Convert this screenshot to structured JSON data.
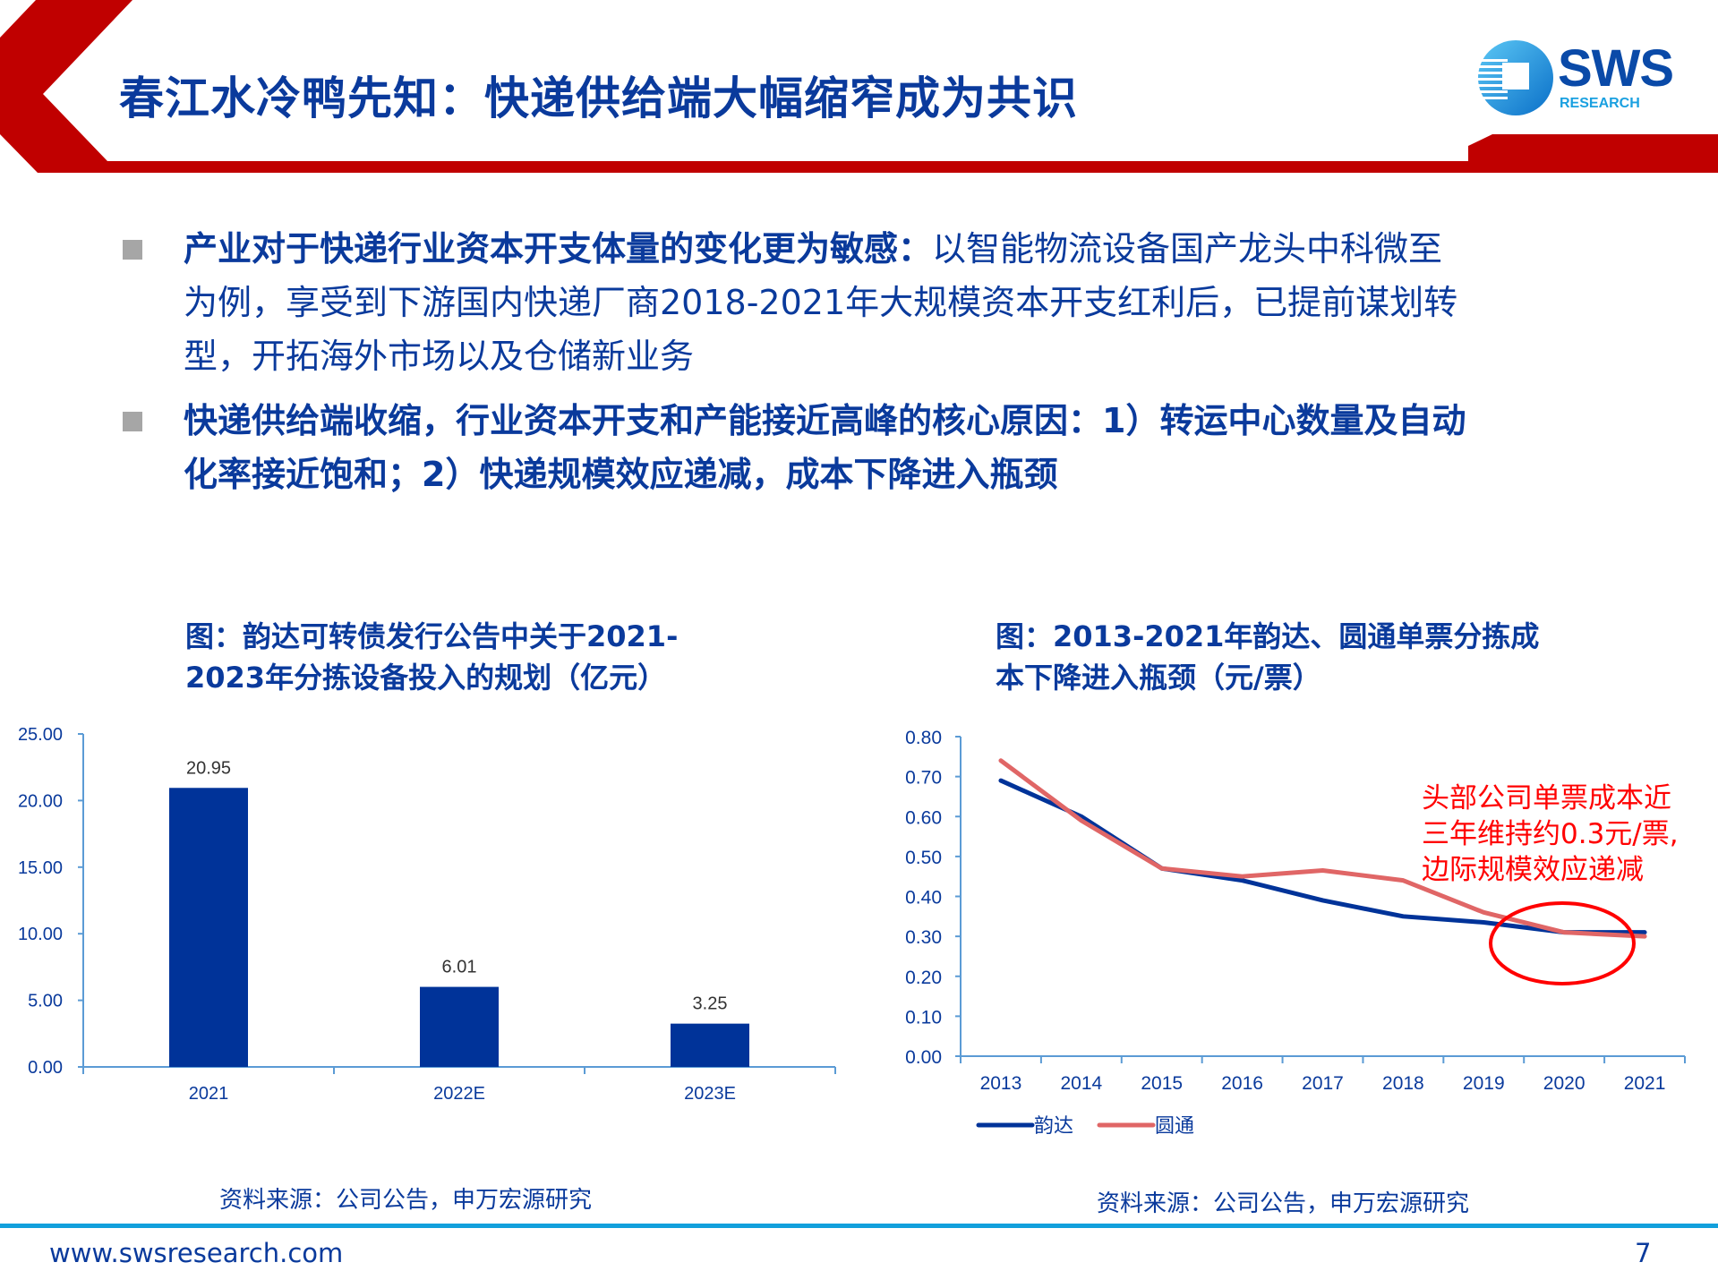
{
  "header": {
    "title": "春江水冷鸭先知：快递供给端大幅缩窄成为共识",
    "logo": {
      "name": "SWS",
      "sub": "RESEARCH"
    },
    "accent_color": "#c00000",
    "title_color": "#0a3a9c"
  },
  "bullets": [
    {
      "bold": "产业对于快递行业资本开支体量的变化更为敏感：",
      "text_lines": [
        "以智能物流设备国产龙头中科微至",
        "为例，享受到下游国内快递厂商2018-2021年大规模资本开支红利后，已提前谋划转",
        "型，开拓海外市场以及仓储新业务"
      ]
    },
    {
      "bold_lines": [
        "快递供给端收缩，行业资本开支和产能接近高峰的核心原因：1）转运中心数量及自动",
        "化率接近饱和；2）快递规模效应递减，成本下降进入瓶颈"
      ]
    }
  ],
  "left_chart": {
    "caption_lines": [
      "图：韵达可转债发行公告中关于2021-",
      "2023年分拣设备投入的规划（亿元）"
    ],
    "source": "资料来源：公司公告，申万宏源研究"
  },
  "right_chart": {
    "caption_lines": [
      "图：2013-2021年韵达、圆通单票分拣成",
      "本下降进入瓶颈（元/票）"
    ],
    "annotation_lines": [
      "头部公司单票成本近",
      "三年维持约0.3元/票,",
      "边际规模效应递减"
    ],
    "source": "资料来源：公司公告，申万宏源研究"
  },
  "chart_data": [
    {
      "type": "bar",
      "title": "图：韵达可转债发行公告中关于2021-2023年分拣设备投入的规划（亿元）",
      "categories": [
        "2021",
        "2022E",
        "2023E"
      ],
      "values": [
        20.95,
        6.01,
        3.25
      ],
      "value_labels": [
        "20.95",
        "6.01",
        "3.25"
      ],
      "xlabel": "",
      "ylabel": "",
      "ylim": [
        0,
        25
      ],
      "yticks": [
        "0.00",
        "5.00",
        "10.00",
        "15.00",
        "20.00",
        "25.00"
      ],
      "bar_color": "#003399",
      "grid": false,
      "legend": "none"
    },
    {
      "type": "line",
      "title": "图：2013-2021年韵达、圆通单票分拣成本下降进入瓶颈（元/票）",
      "categories": [
        "2013",
        "2014",
        "2015",
        "2016",
        "2017",
        "2018",
        "2019",
        "2020",
        "2021"
      ],
      "series": [
        {
          "name": "韵达",
          "color": "#003399",
          "values": [
            0.69,
            0.6,
            0.47,
            0.44,
            0.39,
            0.35,
            0.335,
            0.31,
            0.31
          ]
        },
        {
          "name": "圆通",
          "color": "#e06666",
          "values": [
            0.74,
            0.59,
            0.47,
            0.45,
            0.465,
            0.44,
            0.36,
            0.31,
            0.3
          ]
        }
      ],
      "xlabel": "",
      "ylabel": "",
      "ylim": [
        0,
        0.8
      ],
      "yticks": [
        "0.00",
        "0.10",
        "0.20",
        "0.30",
        "0.40",
        "0.50",
        "0.60",
        "0.70",
        "0.80"
      ],
      "annotation": "头部公司单票成本近三年维持约0.3元/票,边际规模效应递减",
      "grid": false,
      "legend_position": "bottom"
    }
  ],
  "footer": {
    "url": "www.swsresearch.com",
    "page": "7"
  }
}
